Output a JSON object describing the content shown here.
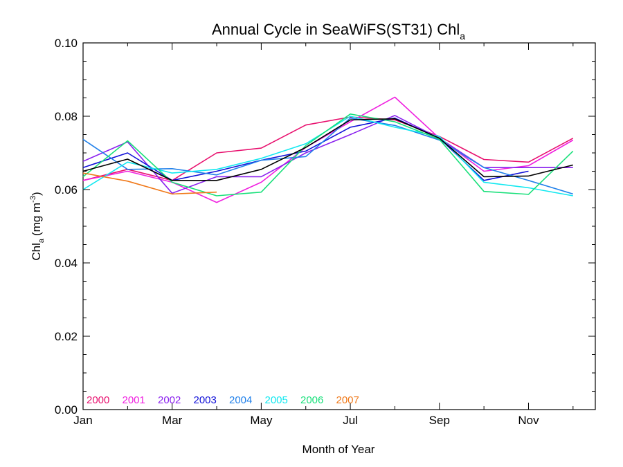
{
  "chart_data": {
    "type": "line",
    "title_main": "Annual Cycle in SeaWiFS(ST31) Chl",
    "title_sub": "a",
    "xlabel": "Month of Year",
    "ylabel_main": "Chl",
    "ylabel_sub": "a",
    "ylabel_unit_pre": "(mg m",
    "ylabel_unit_sup": "-3",
    "ylabel_unit_post": ")",
    "xlim": [
      1,
      12
    ],
    "ylim": [
      0.0,
      0.1
    ],
    "xticks": [
      {
        "value": 1,
        "label": "Jan"
      },
      {
        "value": 3,
        "label": "Mar"
      },
      {
        "value": 5,
        "label": "May"
      },
      {
        "value": 7,
        "label": "Jul"
      },
      {
        "value": 9,
        "label": "Sep"
      },
      {
        "value": 11,
        "label": "Nov"
      }
    ],
    "yticks": [
      {
        "value": 0.0,
        "label": "0.00"
      },
      {
        "value": 0.02,
        "label": "0.02"
      },
      {
        "value": 0.04,
        "label": "0.04"
      },
      {
        "value": 0.06,
        "label": "0.06"
      },
      {
        "value": 0.08,
        "label": "0.08"
      },
      {
        "value": 0.1,
        "label": "0.10"
      }
    ],
    "legend_placement": "bottom-left",
    "series": [
      {
        "name": "2000",
        "color": "#e8106e",
        "x": [
          1,
          2,
          3,
          4,
          5,
          6,
          7,
          8,
          9,
          10,
          11,
          12
        ],
        "y": [
          0.0625,
          0.0655,
          0.0625,
          0.07,
          0.0713,
          0.0776,
          0.0798,
          0.079,
          0.0745,
          0.0682,
          0.0675,
          0.074
        ]
      },
      {
        "name": "2001",
        "color": "#f020e0",
        "x": [
          1,
          2,
          3,
          4,
          5,
          6,
          7,
          8,
          9,
          10,
          11,
          12
        ],
        "y": [
          0.0625,
          0.065,
          0.062,
          0.0565,
          0.062,
          0.0715,
          0.0785,
          0.0852,
          0.074,
          0.065,
          0.0665,
          0.0735
        ]
      },
      {
        "name": "2002",
        "color": "#8a20ee",
        "x": [
          1,
          2,
          3,
          4,
          5,
          6,
          7,
          8,
          9,
          10,
          11,
          12
        ],
        "y": [
          0.0677,
          0.073,
          0.059,
          0.0635,
          0.0635,
          0.07,
          0.075,
          0.0802,
          0.074,
          0.066,
          0.066,
          0.066
        ]
      },
      {
        "name": "2003",
        "color": "#1010d8",
        "x": [
          1,
          2,
          3,
          4,
          5,
          6,
          7,
          8,
          9,
          10,
          11
        ],
        "y": [
          0.066,
          0.07,
          0.0625,
          0.065,
          0.068,
          0.0705,
          0.077,
          0.0795,
          0.074,
          0.0625,
          0.065
        ]
      },
      {
        "name": "2004",
        "color": "#2080ea",
        "x": [
          1,
          2,
          3,
          4,
          5,
          6,
          7,
          8,
          9,
          10,
          11,
          12
        ],
        "y": [
          0.0737,
          0.0655,
          0.0657,
          0.064,
          0.068,
          0.069,
          0.0795,
          0.0775,
          0.0735,
          0.066,
          0.0625,
          0.0588
        ]
      },
      {
        "name": "2005",
        "color": "#10e8f0",
        "x": [
          1,
          2,
          3,
          4,
          5,
          6,
          7,
          8,
          9,
          10,
          11,
          12
        ],
        "y": [
          0.06,
          0.0675,
          0.0645,
          0.0655,
          0.0685,
          0.0725,
          0.08,
          0.077,
          0.0745,
          0.062,
          0.0605,
          0.0583
        ]
      },
      {
        "name": "2006",
        "color": "#18e07a",
        "x": [
          1,
          2,
          3,
          4,
          5,
          6,
          7,
          8,
          9,
          10,
          11,
          12
        ],
        "y": [
          0.0635,
          0.0733,
          0.062,
          0.0583,
          0.0593,
          0.072,
          0.0806,
          0.0785,
          0.0737,
          0.0595,
          0.0587,
          0.0705
        ]
      },
      {
        "name": "2007",
        "color": "#f07818",
        "x": [
          1,
          2,
          3,
          4
        ],
        "y": [
          0.0645,
          0.0623,
          0.0588,
          0.0593
        ]
      },
      {
        "color": "#000000",
        "x": [
          1,
          2,
          3,
          4,
          5,
          6,
          7,
          8,
          9,
          10,
          11,
          12
        ],
        "y": [
          0.065,
          0.0683,
          0.0625,
          0.0625,
          0.0655,
          0.0715,
          0.079,
          0.0793,
          0.074,
          0.0635,
          0.0637,
          0.0667
        ]
      }
    ]
  }
}
